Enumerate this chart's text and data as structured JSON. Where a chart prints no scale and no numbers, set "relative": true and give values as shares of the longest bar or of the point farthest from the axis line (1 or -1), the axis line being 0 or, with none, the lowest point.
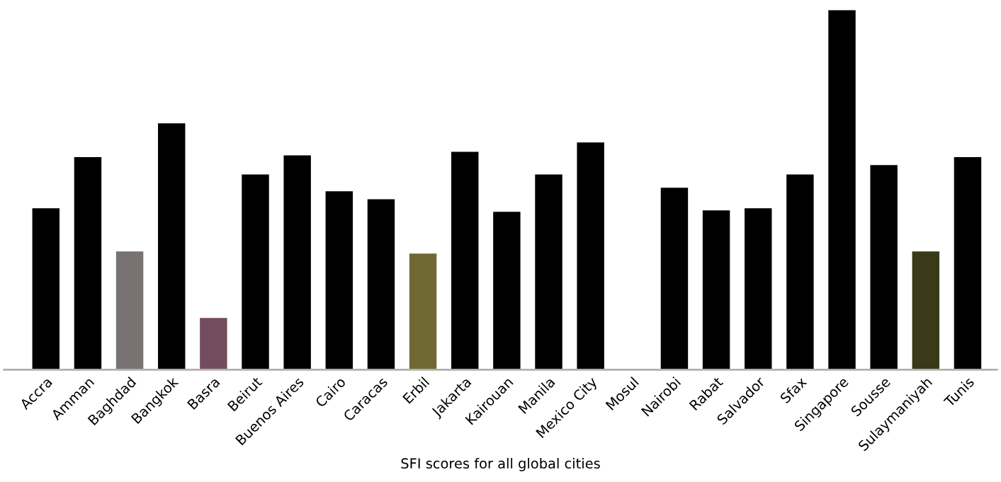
{
  "chart_data": {
    "type": "bar",
    "relative": true,
    "xlabel": "SFI scores for all global cities",
    "categories": [
      "Accra",
      "Amman",
      "Baghdad",
      "Bangkok",
      "Basra",
      "Beirut",
      "Buenos Aires",
      "Cairo",
      "Caracas",
      "Erbil",
      "Jakarta",
      "Kairouan",
      "Manila",
      "Mexico City",
      "Mosul",
      "Nairobi",
      "Rabat",
      "Salvador",
      "Sfax",
      "Singapore",
      "Sousse",
      "Sulaymaniyah",
      "Tunis"
    ],
    "values": [
      0.449,
      0.591,
      0.329,
      0.685,
      0.144,
      0.543,
      0.596,
      0.496,
      0.474,
      0.323,
      0.606,
      0.439,
      0.543,
      0.632,
      null,
      0.506,
      0.443,
      0.449,
      0.543,
      1,
      0.569,
      0.329,
      0.591
    ],
    "colors": [
      "#000000",
      "#000000",
      "#787272",
      "#000000",
      "#734c5e",
      "#000000",
      "#000000",
      "#000000",
      "#000000",
      "#706935",
      "#000000",
      "#000000",
      "#000000",
      "#000000",
      "#000000",
      "#000000",
      "#000000",
      "#000000",
      "#000000",
      "#000000",
      "#000000",
      "#3b3a18",
      "#000000"
    ],
    "grid": false,
    "legend": false
  }
}
